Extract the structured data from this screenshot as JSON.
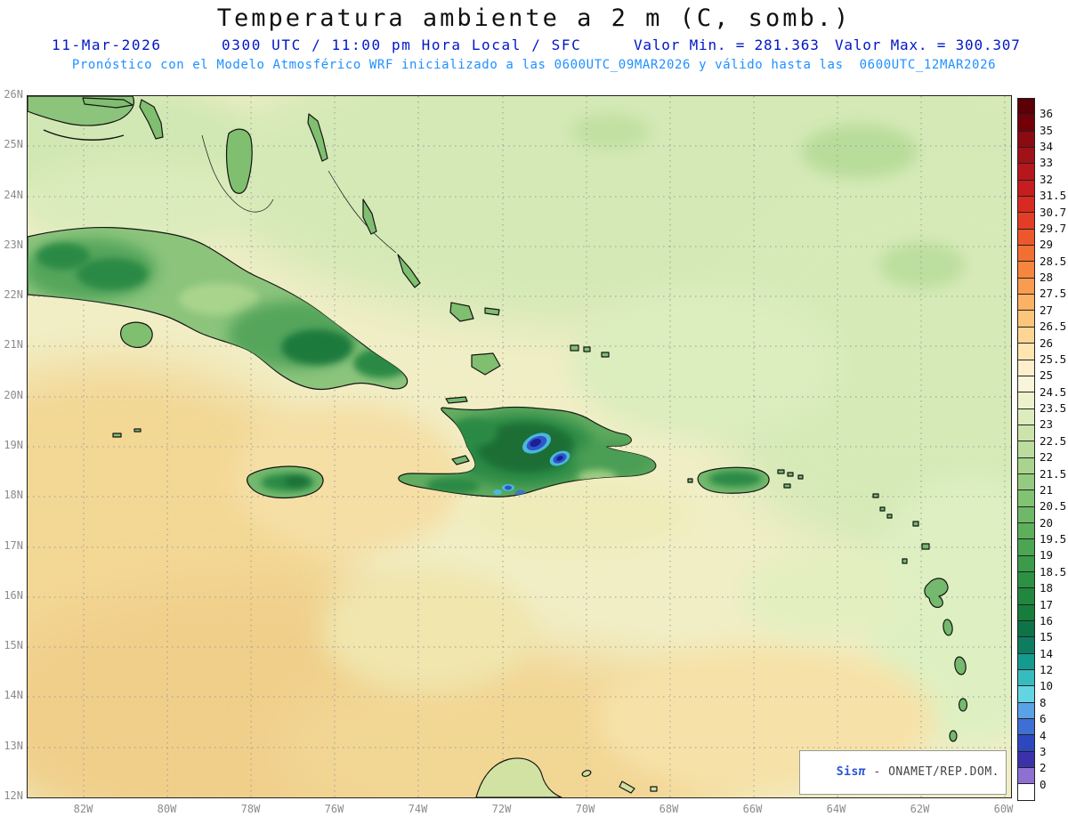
{
  "title": "Temperatura ambiente a 2 m (C, somb.)",
  "header": {
    "date": "11-Mar-2026",
    "time": "0300 UTC / 11:00 pm Hora Local / SFC",
    "min": "Valor Min. = 281.363",
    "max": "Valor Max. = 300.307",
    "forecast": "Pronóstico con el Modelo Atmosférico WRF inicializado a las 0600UTC_09MAR2026 y válido hasta las  0600UTC_12MAR2026"
  },
  "map": {
    "lat_labels": [
      "26N",
      "25N",
      "24N",
      "23N",
      "22N",
      "21N",
      "20N",
      "19N",
      "18N",
      "17N",
      "16N",
      "15N",
      "14N",
      "13N",
      "12N"
    ],
    "lon_labels": [
      "82W",
      "80W",
      "78W",
      "76W",
      "74W",
      "72W",
      "70W",
      "68W",
      "66W",
      "64W",
      "62W",
      "60W"
    ],
    "credit": {
      "sis": "Sis",
      "pi": "π",
      "rest": " - ONAMET/REP.DOM."
    }
  },
  "colorbar": {
    "labels": [
      "36",
      "35",
      "34",
      "33",
      "32",
      "31.5",
      "30.7",
      "29.7",
      "29",
      "28.5",
      "28",
      "27.5",
      "27",
      "26.5",
      "26",
      "25.5",
      "25",
      "24.5",
      "23.5",
      "23",
      "22.5",
      "22",
      "21.5",
      "21",
      "20.5",
      "20",
      "19.5",
      "19",
      "18.5",
      "18",
      "17",
      "16",
      "15",
      "14",
      "12",
      "10",
      "8",
      "6",
      "4",
      "3",
      "2",
      "0"
    ],
    "colors": [
      "#5a0006",
      "#730009",
      "#8c0a12",
      "#a11118",
      "#b5171d",
      "#c71c20",
      "#d72b21",
      "#e33e25",
      "#ec572b",
      "#f26f33",
      "#f6863e",
      "#f99c4f",
      "#fbb264",
      "#fcc57c",
      "#fdd694",
      "#fee5b1",
      "#fdefcc",
      "#f8f5da",
      "#edf2cc",
      "#ddecbc",
      "#cce4ab",
      "#badc9c",
      "#a8d48e",
      "#95cb80",
      "#82c273",
      "#6fb867",
      "#5daf5c",
      "#4ba553",
      "#3b9b4a",
      "#2d9144",
      "#21873f",
      "#167d3a",
      "#0e7347",
      "#0d7c60",
      "#149a8e",
      "#36bcbe",
      "#64d4e2",
      "#59a2e6",
      "#3e70d4",
      "#2d47bf",
      "#3c31aa",
      "#8e70d2",
      "#ffffff"
    ]
  }
}
